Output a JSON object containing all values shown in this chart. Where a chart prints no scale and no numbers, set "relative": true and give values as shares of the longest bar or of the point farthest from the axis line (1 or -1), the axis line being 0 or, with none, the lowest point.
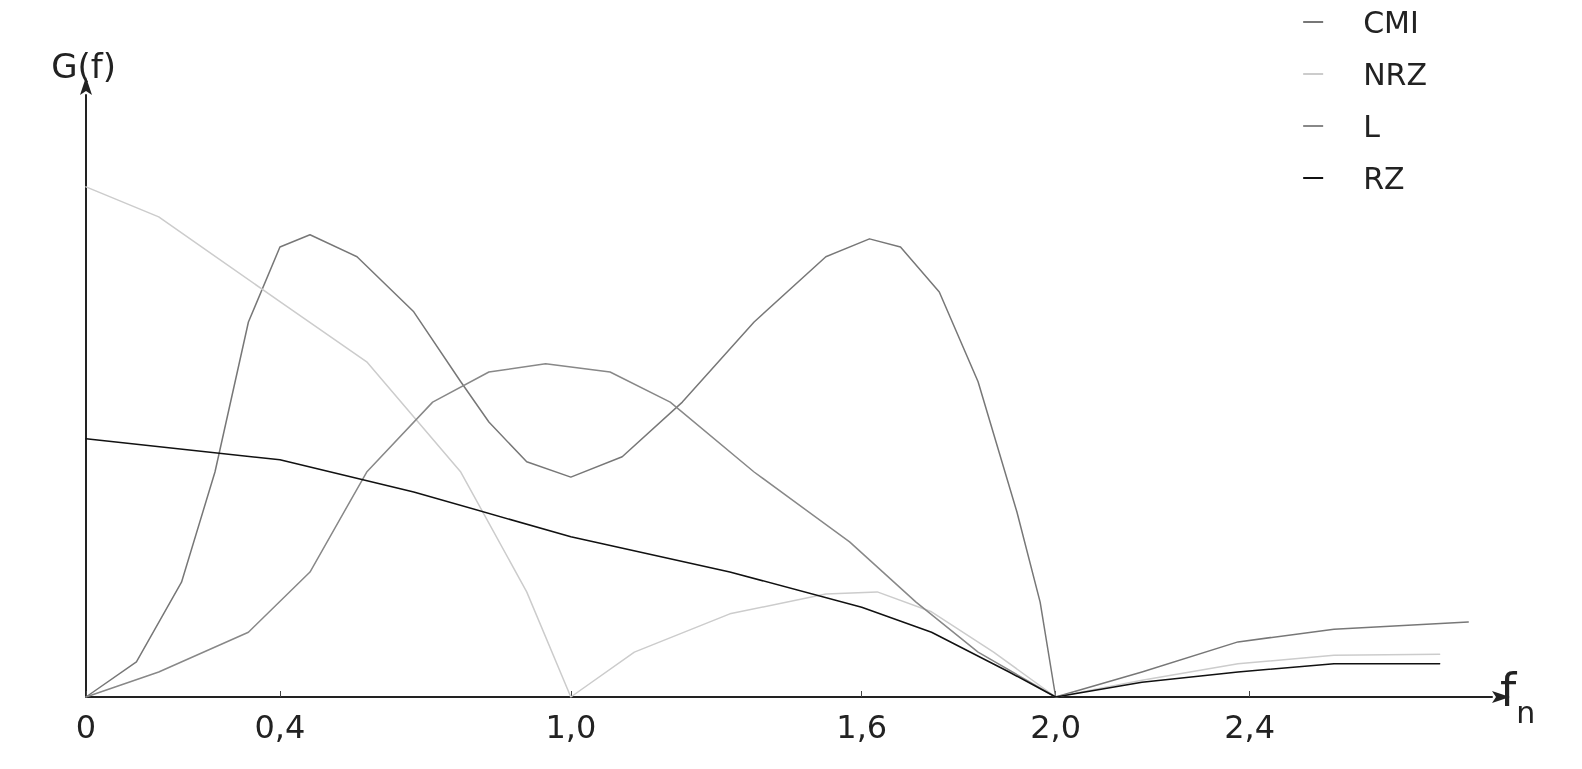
{
  "chart_data": {
    "type": "line",
    "relative": true,
    "ylabel": "G(f)",
    "xlabel": "f$_{n}$",
    "xlim": [
      0,
      2.9
    ],
    "xticks": [
      0,
      {
        "value": 0.4,
        "label": "0,4"
      },
      {
        "value": 1.0,
        "label": "1,0"
      },
      {
        "value": 1.6,
        "label": "1,6"
      },
      {
        "value": 2.0,
        "label": "2,0"
      },
      {
        "value": 2.4,
        "label": "2,4"
      }
    ],
    "grid": false,
    "legend": "top right",
    "marker": "none",
    "line_style": "solid",
    "series": [
      {
        "name": "CMI",
        "color": "#777777",
        "x": [
          0,
          0.104,
          0.197,
          0.266,
          0.335,
          0.4,
          0.462,
          0.559,
          0.676,
          0.773,
          0.831,
          0.909,
          1.0,
          1.106,
          1.23,
          1.378,
          1.526,
          1.616,
          1.68,
          1.76,
          1.84,
          1.92,
          1.968,
          2.0,
          2.178,
          2.376,
          2.574,
          2.851
        ],
        "values": [
          0,
          0.069,
          0.225,
          0.441,
          0.735,
          0.882,
          0.906,
          0.863,
          0.755,
          0.618,
          0.539,
          0.461,
          0.431,
          0.471,
          0.578,
          0.735,
          0.863,
          0.898,
          0.882,
          0.794,
          0.618,
          0.363,
          0.186,
          0,
          0.049,
          0.108,
          0.133,
          0.147
        ]
      },
      {
        "name": "NRZ",
        "color": "#cccccc",
        "x": [
          0,
          0.15,
          0.4,
          0.579,
          0.773,
          0.909,
          1.0,
          1.131,
          1.328,
          1.526,
          1.632,
          1.744,
          1.872,
          2.0,
          2.178,
          2.376,
          2.574,
          2.792
        ],
        "values": [
          1.0,
          0.941,
          0.775,
          0.657,
          0.441,
          0.206,
          0,
          0.088,
          0.163,
          0.202,
          0.206,
          0.167,
          0.088,
          0,
          0.033,
          0.065,
          0.082,
          0.084
        ]
      },
      {
        "name": "L",
        "color": "#888888",
        "x": [
          0,
          0.15,
          0.335,
          0.462,
          0.579,
          0.715,
          0.831,
          0.948,
          1.081,
          1.205,
          1.378,
          1.575,
          1.712,
          1.84,
          2.0
        ],
        "values": [
          0,
          0.049,
          0.127,
          0.245,
          0.441,
          0.578,
          0.637,
          0.653,
          0.637,
          0.578,
          0.441,
          0.304,
          0.186,
          0.088,
          0
        ]
      },
      {
        "name": "RZ",
        "color": "#111111",
        "x": [
          0,
          0.4,
          0.676,
          1.0,
          1.328,
          1.6,
          1.744,
          1.904,
          2.0,
          2.178,
          2.376,
          2.574,
          2.792
        ],
        "values": [
          0.506,
          0.465,
          0.402,
          0.314,
          0.245,
          0.176,
          0.127,
          0.049,
          0,
          0.029,
          0.049,
          0.065,
          0.065
        ]
      }
    ]
  }
}
